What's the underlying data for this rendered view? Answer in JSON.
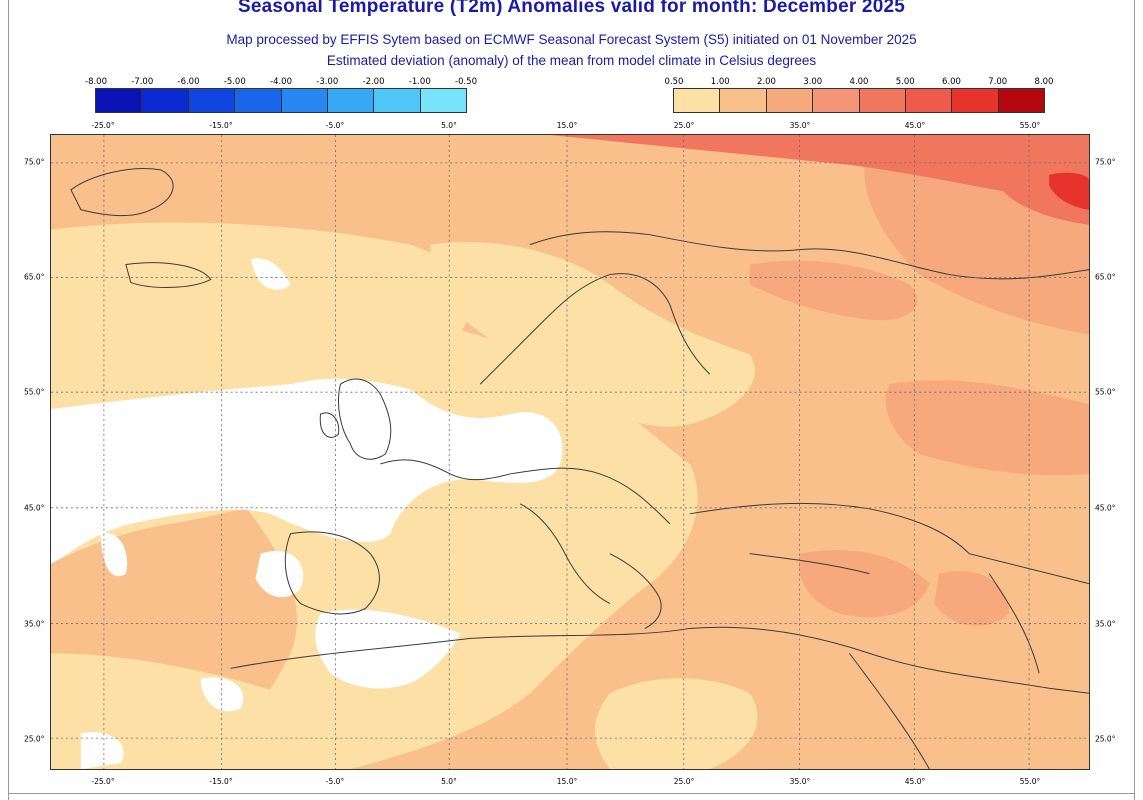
{
  "title": "Seasonal Temperature (T2m) Anomalies valid for month: December 2025",
  "subtitle1": "Map processed by EFFIS Sytem based on ECMWF Seasonal Forecast System (S5) initiated on 01 November 2025",
  "subtitle2": "Estimated deviation (anomaly) of the mean from model climate in Celsius degrees",
  "legend": {
    "negative": {
      "labels": [
        "-8.00",
        "-7.00",
        "-6.00",
        "-5.00",
        "-4.00",
        "-3.00",
        "-2.00",
        "-1.00",
        "-0.50"
      ],
      "colors": [
        "#0a14b4",
        "#0c2ad2",
        "#1145e0",
        "#1a66ea",
        "#2688f0",
        "#36a8f4",
        "#4ec6f8",
        "#78e4fc"
      ]
    },
    "positive": {
      "labels": [
        "0.50",
        "1.00",
        "2.00",
        "3.00",
        "4.00",
        "5.00",
        "6.00",
        "7.00",
        "8.00"
      ],
      "colors": [
        "#fde0a6",
        "#f9c08c",
        "#f6a97c",
        "#f49478",
        "#f1765e",
        "#ee5a4c",
        "#e6342c",
        "#b3080e"
      ]
    }
  },
  "longitudes": [
    "-25.0°",
    "-15.0°",
    "-5.0°",
    "5.0°",
    "15.0°",
    "25.0°",
    "35.0°",
    "45.0°",
    "55.0°"
  ],
  "latitudes": [
    "75.0°",
    "65.0°",
    "55.0°",
    "45.0°",
    "35.0°",
    "25.0°"
  ],
  "colors": {
    "title": "#1a1aa8",
    "land_border": "#3a3a3a",
    "grid": "#6b6b6b"
  }
}
